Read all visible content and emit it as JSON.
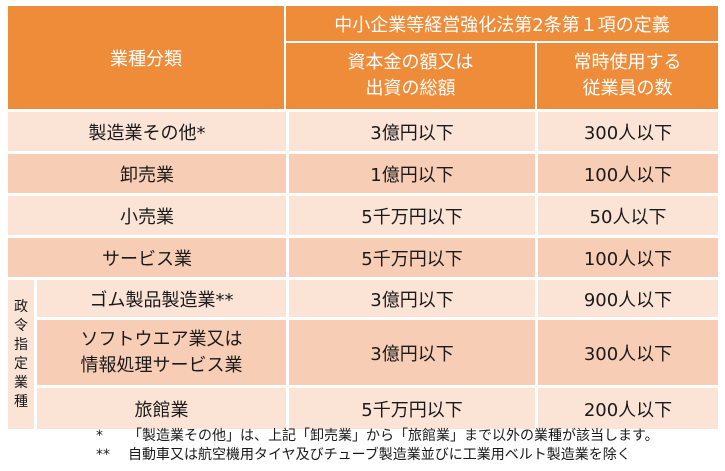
{
  "header": {
    "category": "業種分類",
    "definition": "中小企業等経営強化法第2条第１項の定義",
    "capital": [
      "資本金の額又は",
      "出資の総額"
    ],
    "employees": [
      "常時使用する",
      "従業員の数"
    ]
  },
  "side_label": [
    "政",
    "令",
    "指",
    "定",
    "業",
    "種"
  ],
  "rows": [
    {
      "category": [
        "製造業その他*"
      ],
      "capital": "3億円以下",
      "employees": "300人以下"
    },
    {
      "category": [
        "卸売業"
      ],
      "capital": "1億円以下",
      "employees": "100人以下"
    },
    {
      "category": [
        "小売業"
      ],
      "capital": "5千万円以下",
      "employees": "50人以下"
    },
    {
      "category": [
        "サービス業"
      ],
      "capital": "5千万円以下",
      "employees": "100人以下"
    },
    {
      "category": [
        "ゴム製品製造業**"
      ],
      "capital": "3億円以下",
      "employees": "900人以下"
    },
    {
      "category": [
        "ソフトウエア業又は",
        "情報処理サービス業"
      ],
      "capital": "3億円以下",
      "employees": "300人以下"
    },
    {
      "category": [
        "旅館業"
      ],
      "capital": "5千万円以下",
      "employees": "200人以下"
    }
  ],
  "notes": [
    {
      "mark": "*",
      "text": "「製造業その他」は、上記「卸売業」から「旅館業」まで以外の業種が該当します。"
    },
    {
      "mark": "**",
      "text": "自動車又は航空機用タイヤ及びチューブ製造業並びに工業用ベルト製造業を除く"
    }
  ]
}
